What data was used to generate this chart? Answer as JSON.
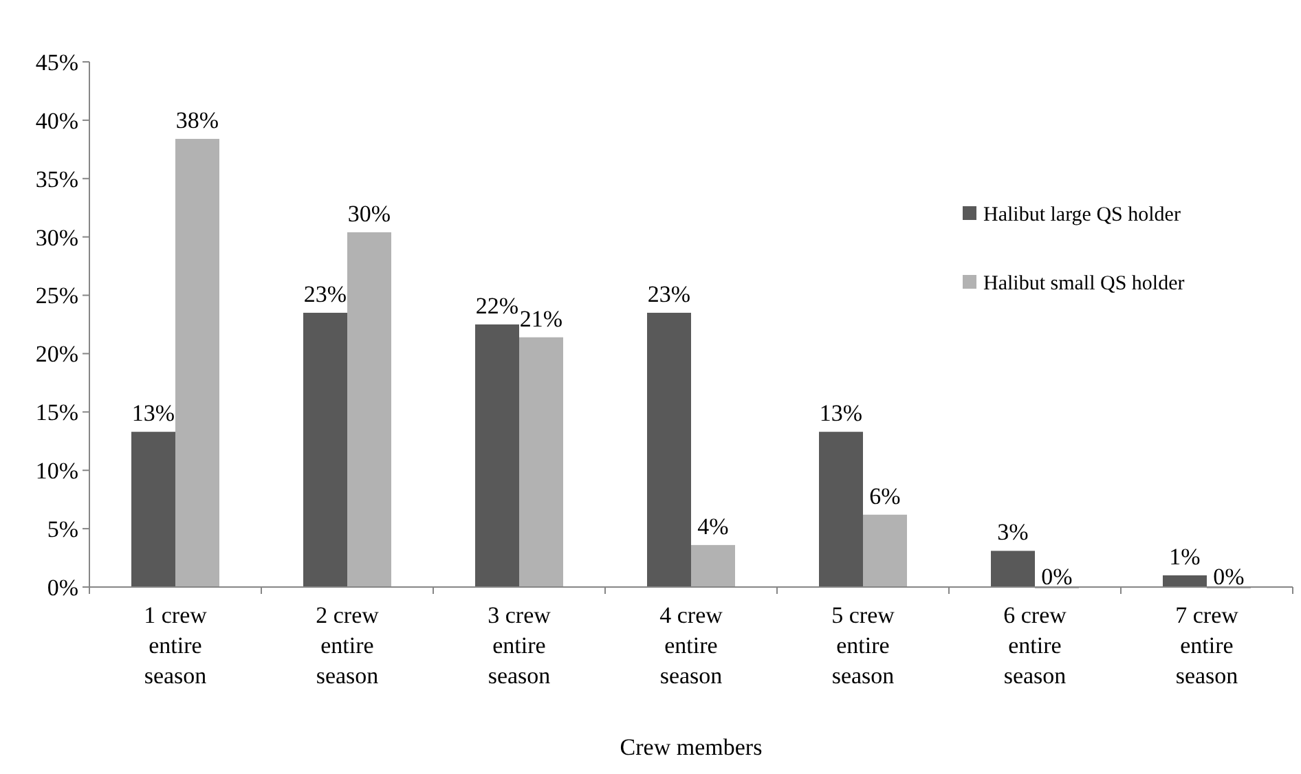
{
  "chart_data": {
    "type": "bar",
    "xlabel": "Crew members",
    "categories": [
      "1 crew entire season",
      "2 crew entire season",
      "3 crew entire season",
      "4 crew entire season",
      "5 crew entire season",
      "6 crew entire season",
      "7 crew entire season"
    ],
    "series": [
      {
        "name": "Halibut large QS holder",
        "color": "#595959",
        "values": [
          13.3,
          23.5,
          22.5,
          23.5,
          13.3,
          3.1,
          1.0
        ],
        "value_labels": [
          "13%",
          "23%",
          "22%",
          "23%",
          "13%",
          "3%",
          "1%"
        ]
      },
      {
        "name": "Halibut small QS holder",
        "color": "#b2b2b2",
        "values": [
          38.4,
          30.4,
          21.4,
          3.6,
          6.2,
          0,
          0
        ],
        "value_labels": [
          "38%",
          "30%",
          "21%",
          "4%",
          "6%",
          "0%",
          "0%"
        ]
      }
    ],
    "ylim": [
      0,
      45
    ],
    "yticks": [
      {
        "value": 0,
        "label": "0%"
      },
      {
        "value": 5,
        "label": "5%"
      },
      {
        "value": 10,
        "label": "10%"
      },
      {
        "value": 15,
        "label": "15%"
      },
      {
        "value": 20,
        "label": "20%"
      },
      {
        "value": 25,
        "label": "25%"
      },
      {
        "value": 30,
        "label": "30%"
      },
      {
        "value": 35,
        "label": "35%"
      },
      {
        "value": 40,
        "label": "40%"
      },
      {
        "value": 45,
        "label": "45%"
      }
    ],
    "grid": false,
    "legend": "top right"
  }
}
